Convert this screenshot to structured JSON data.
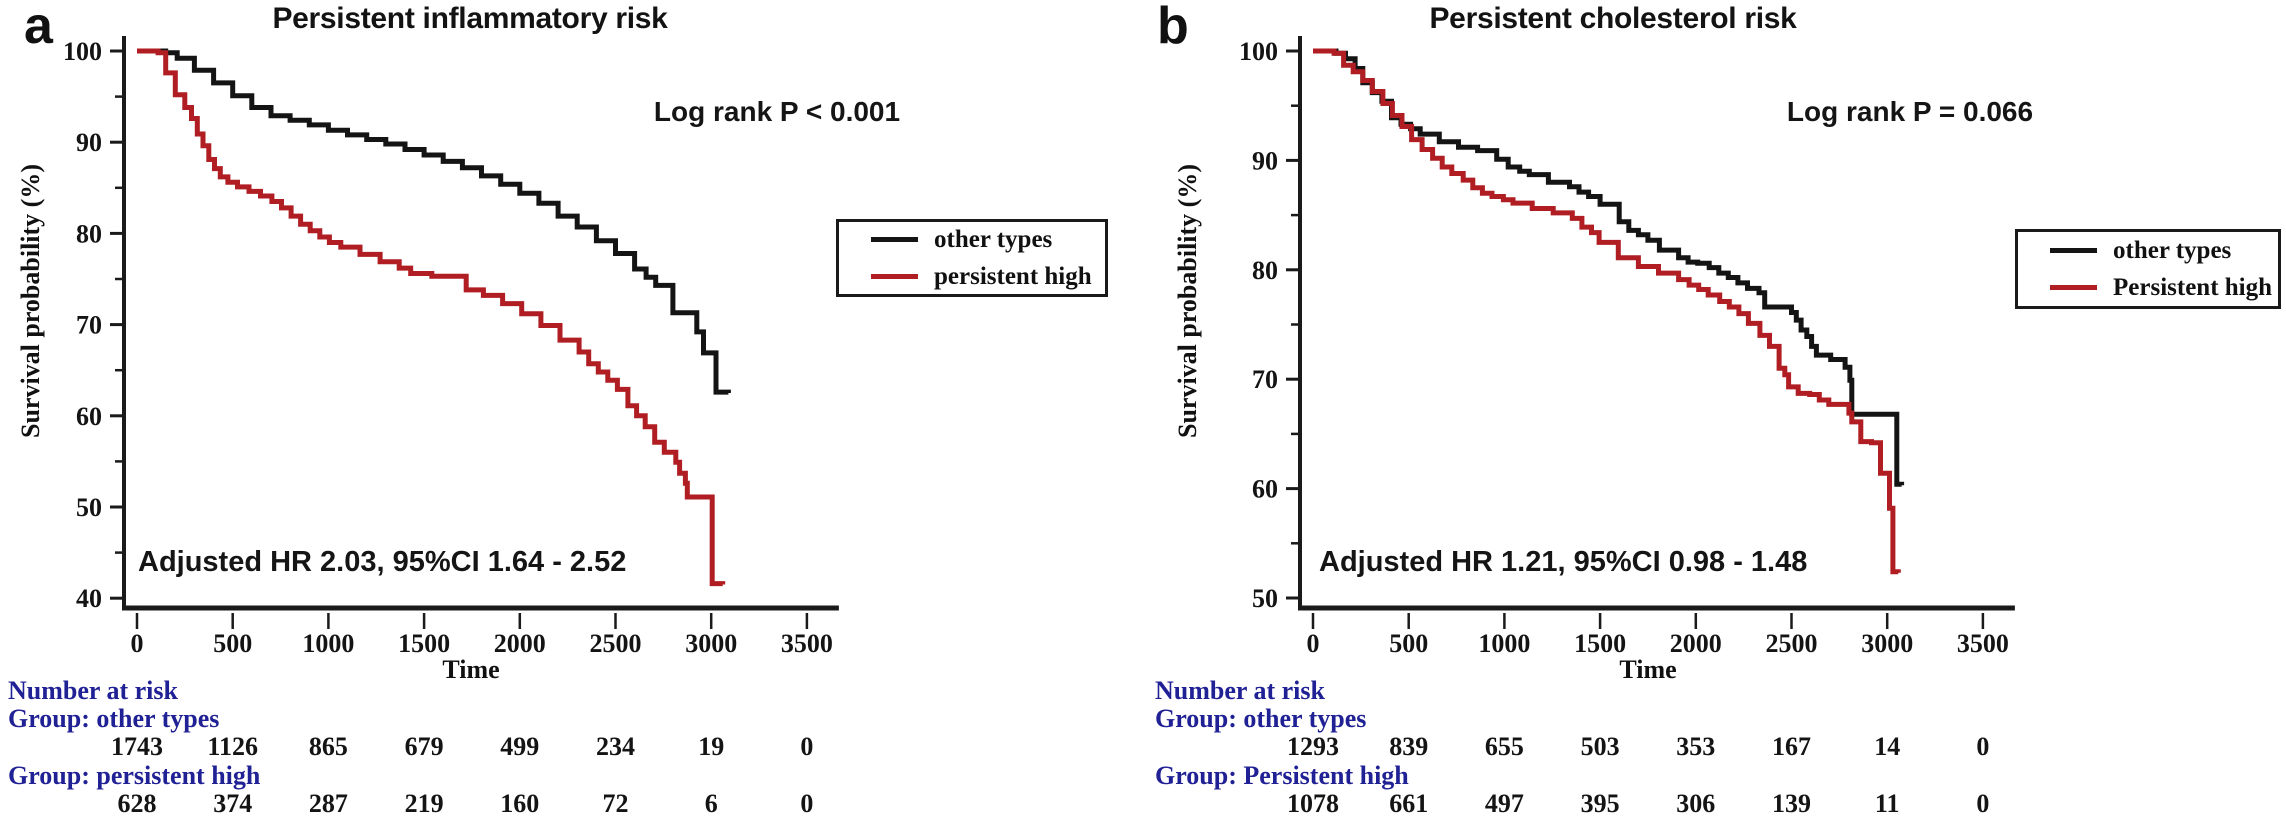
{
  "figure": {
    "background_color": "#ffffff",
    "accent_navy": "#212196",
    "curve_black": "#141414",
    "curve_red": "#b01e23"
  },
  "chart_data": [
    {
      "type": "line",
      "subtype": "kaplan-meier-step",
      "panel_letter": "a",
      "title": "Persistent inflammatory risk",
      "log_rank_text": "Log rank P < 0.001",
      "hr_text": "Adjusted HR 2.03, 95%CI 1.64 - 2.52",
      "x_label": "Time",
      "y_label": "Survival probability (%)",
      "xlim": [
        0,
        3500
      ],
      "ylim": [
        40,
        100
      ],
      "x_ticks": [
        0,
        500,
        1000,
        1500,
        2000,
        2500,
        3000,
        3500
      ],
      "y_ticks": [
        100,
        90,
        80,
        70,
        60,
        50,
        40
      ],
      "grid": false,
      "legend_position": "right",
      "series": [
        {
          "name": "other types",
          "color": "#141414",
          "points": [
            [
              0,
              100
            ],
            [
              150,
              99.8
            ],
            [
              210,
              99.2
            ],
            [
              300,
              97.9
            ],
            [
              400,
              96.5
            ],
            [
              500,
              95.1
            ],
            [
              600,
              93.8
            ],
            [
              700,
              92.9
            ],
            [
              800,
              92.4
            ],
            [
              900,
              91.9
            ],
            [
              1000,
              91.3
            ],
            [
              1100,
              90.8
            ],
            [
              1200,
              90.3
            ],
            [
              1300,
              89.8
            ],
            [
              1400,
              89.2
            ],
            [
              1500,
              88.6
            ],
            [
              1600,
              87.9
            ],
            [
              1700,
              87.2
            ],
            [
              1800,
              86.3
            ],
            [
              1900,
              85.4
            ],
            [
              2000,
              84.4
            ],
            [
              2100,
              83.3
            ],
            [
              2200,
              81.9
            ],
            [
              2300,
              80.7
            ],
            [
              2400,
              79.2
            ],
            [
              2500,
              77.8
            ],
            [
              2600,
              76.1
            ],
            [
              2660,
              75.2
            ],
            [
              2710,
              74.3
            ],
            [
              2800,
              71.3
            ],
            [
              2925,
              69.2
            ],
            [
              2960,
              66.9
            ],
            [
              3025,
              62.6
            ],
            [
              3090,
              62.5
            ]
          ]
        },
        {
          "name": "persistent high",
          "color": "#b01e23",
          "points": [
            [
              0,
              100
            ],
            [
              110,
              99.8
            ],
            [
              150,
              97.6
            ],
            [
              200,
              95.2
            ],
            [
              250,
              93.8
            ],
            [
              285,
              92.6
            ],
            [
              315,
              90.9
            ],
            [
              345,
              89.6
            ],
            [
              375,
              88.1
            ],
            [
              405,
              87.1
            ],
            [
              435,
              86.2
            ],
            [
              475,
              85.6
            ],
            [
              525,
              85.1
            ],
            [
              585,
              84.6
            ],
            [
              645,
              84.1
            ],
            [
              705,
              83.5
            ],
            [
              755,
              82.8
            ],
            [
              805,
              81.9
            ],
            [
              855,
              81.0
            ],
            [
              905,
              80.3
            ],
            [
              955,
              79.6
            ],
            [
              1005,
              79.0
            ],
            [
              1065,
              78.5
            ],
            [
              1165,
              77.7
            ],
            [
              1270,
              76.9
            ],
            [
              1370,
              76.2
            ],
            [
              1430,
              75.6
            ],
            [
              1540,
              75.3
            ],
            [
              1720,
              73.8
            ],
            [
              1810,
              73.2
            ],
            [
              1910,
              72.3
            ],
            [
              2010,
              71.2
            ],
            [
              2110,
              69.9
            ],
            [
              2210,
              68.3
            ],
            [
              2310,
              67.0
            ],
            [
              2360,
              65.7
            ],
            [
              2410,
              64.8
            ],
            [
              2460,
              63.9
            ],
            [
              2510,
              62.9
            ],
            [
              2565,
              61.1
            ],
            [
              2610,
              60.0
            ],
            [
              2655,
              58.8
            ],
            [
              2705,
              57.1
            ],
            [
              2755,
              56.0
            ],
            [
              2815,
              54.9
            ],
            [
              2835,
              53.7
            ],
            [
              2865,
              52.6
            ],
            [
              2875,
              51.1
            ],
            [
              3005,
              41.6
            ],
            [
              3060,
              41.5
            ]
          ]
        }
      ],
      "number_at_risk": {
        "header": "Number at risk",
        "groups": [
          {
            "label": "Group: other types",
            "counts": [
              1743,
              1126,
              865,
              679,
              499,
              234,
              19,
              0
            ]
          },
          {
            "label": "Group: persistent high",
            "counts": [
              628,
              374,
              287,
              219,
              160,
              72,
              6,
              0
            ]
          }
        ]
      }
    },
    {
      "type": "line",
      "subtype": "kaplan-meier-step",
      "panel_letter": "b",
      "title": "Persistent cholesterol risk",
      "log_rank_text": "Log rank P = 0.066",
      "hr_text": "Adjusted HR 1.21, 95%CI 0.98 - 1.48",
      "x_label": "Time",
      "y_label": "Survival probability (%)",
      "xlim": [
        0,
        3500
      ],
      "ylim": [
        50,
        100
      ],
      "x_ticks": [
        0,
        500,
        1000,
        1500,
        2000,
        2500,
        3000,
        3500
      ],
      "y_ticks": [
        100,
        90,
        80,
        70,
        60,
        50
      ],
      "grid": false,
      "legend_position": "right",
      "series": [
        {
          "name": "other types",
          "color": "#141414",
          "points": [
            [
              0,
              100
            ],
            [
              120,
              99.8
            ],
            [
              170,
              99.3
            ],
            [
              220,
              98.4
            ],
            [
              260,
              97.1
            ],
            [
              310,
              96.2
            ],
            [
              360,
              95.4
            ],
            [
              410,
              93.9
            ],
            [
              460,
              93.3
            ],
            [
              510,
              92.9
            ],
            [
              560,
              92.4
            ],
            [
              660,
              91.7
            ],
            [
              760,
              91.2
            ],
            [
              860,
              90.9
            ],
            [
              960,
              90.1
            ],
            [
              1020,
              89.4
            ],
            [
              1080,
              89.0
            ],
            [
              1130,
              88.7
            ],
            [
              1230,
              88.0
            ],
            [
              1340,
              87.6
            ],
            [
              1390,
              87.1
            ],
            [
              1440,
              86.7
            ],
            [
              1500,
              86.0
            ],
            [
              1600,
              84.4
            ],
            [
              1650,
              83.6
            ],
            [
              1700,
              83.2
            ],
            [
              1750,
              82.7
            ],
            [
              1810,
              81.8
            ],
            [
              1910,
              81.1
            ],
            [
              1960,
              80.7
            ],
            [
              2010,
              80.6
            ],
            [
              2070,
              80.2
            ],
            [
              2120,
              79.7
            ],
            [
              2170,
              79.3
            ],
            [
              2220,
              78.8
            ],
            [
              2270,
              78.3
            ],
            [
              2330,
              77.9
            ],
            [
              2360,
              76.6
            ],
            [
              2500,
              76.1
            ],
            [
              2525,
              75.4
            ],
            [
              2550,
              74.5
            ],
            [
              2580,
              73.9
            ],
            [
              2605,
              73.0
            ],
            [
              2630,
              72.2
            ],
            [
              2705,
              71.8
            ],
            [
              2780,
              71.1
            ],
            [
              2805,
              69.9
            ],
            [
              2815,
              66.8
            ],
            [
              3045,
              66.8
            ],
            [
              3050,
              60.4
            ],
            [
              3075,
              60.3
            ]
          ]
        },
        {
          "name": "Persistent high",
          "color": "#b01e23",
          "points": [
            [
              0,
              100
            ],
            [
              110,
              99.8
            ],
            [
              160,
              98.7
            ],
            [
              210,
              98.1
            ],
            [
              260,
              97.3
            ],
            [
              310,
              96.3
            ],
            [
              365,
              95.2
            ],
            [
              415,
              94.1
            ],
            [
              465,
              93.1
            ],
            [
              515,
              91.9
            ],
            [
              570,
              91.0
            ],
            [
              625,
              90.2
            ],
            [
              675,
              89.4
            ],
            [
              725,
              88.8
            ],
            [
              785,
              88.2
            ],
            [
              835,
              87.5
            ],
            [
              885,
              87.0
            ],
            [
              935,
              86.7
            ],
            [
              995,
              86.4
            ],
            [
              1045,
              86.1
            ],
            [
              1145,
              85.6
            ],
            [
              1255,
              85.2
            ],
            [
              1355,
              84.7
            ],
            [
              1405,
              83.9
            ],
            [
              1455,
              83.4
            ],
            [
              1495,
              82.5
            ],
            [
              1595,
              81.1
            ],
            [
              1700,
              80.3
            ],
            [
              1805,
              79.7
            ],
            [
              1910,
              79.1
            ],
            [
              1965,
              78.6
            ],
            [
              2015,
              78.2
            ],
            [
              2065,
              77.7
            ],
            [
              2125,
              77.1
            ],
            [
              2175,
              76.6
            ],
            [
              2225,
              76.0
            ],
            [
              2275,
              75.1
            ],
            [
              2335,
              74.0
            ],
            [
              2385,
              73.0
            ],
            [
              2435,
              71.0
            ],
            [
              2465,
              70.4
            ],
            [
              2485,
              69.3
            ],
            [
              2535,
              68.7
            ],
            [
              2595,
              68.6
            ],
            [
              2645,
              68.1
            ],
            [
              2695,
              67.7
            ],
            [
              2800,
              66.9
            ],
            [
              2815,
              66.1
            ],
            [
              2862,
              64.3
            ],
            [
              2918,
              64.2
            ],
            [
              2965,
              61.4
            ],
            [
              3012,
              58.2
            ],
            [
              3030,
              52.4
            ],
            [
              3058,
              52.3
            ]
          ]
        }
      ],
      "number_at_risk": {
        "header": "Number at risk",
        "groups": [
          {
            "label": "Group: other types",
            "counts": [
              1293,
              839,
              655,
              503,
              353,
              167,
              14,
              0
            ]
          },
          {
            "label": "Group: Persistent high",
            "counts": [
              1078,
              661,
              497,
              395,
              306,
              139,
              11,
              0
            ]
          }
        ]
      }
    }
  ]
}
